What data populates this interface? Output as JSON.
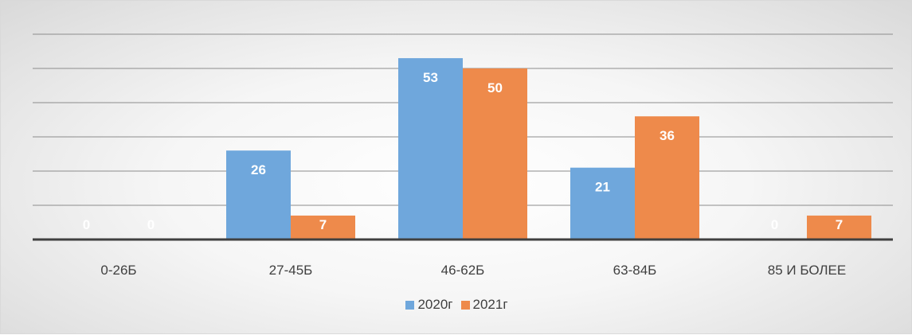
{
  "chart_data": {
    "type": "bar",
    "categories": [
      "0-26Б",
      "27-45Б",
      "46-62Б",
      "63-84Б",
      "85 И БОЛЕЕ"
    ],
    "series": [
      {
        "name": "2020г",
        "values": [
          0,
          26,
          53,
          21,
          0
        ],
        "color": "#6fa7dc"
      },
      {
        "name": "2021г",
        "values": [
          0,
          7,
          50,
          36,
          7
        ],
        "color": "#ee8a4b"
      }
    ],
    "title": "",
    "xlabel": "",
    "ylabel": "",
    "ylim": [
      0,
      60
    ],
    "grid": true,
    "legend_position": "bottom"
  }
}
